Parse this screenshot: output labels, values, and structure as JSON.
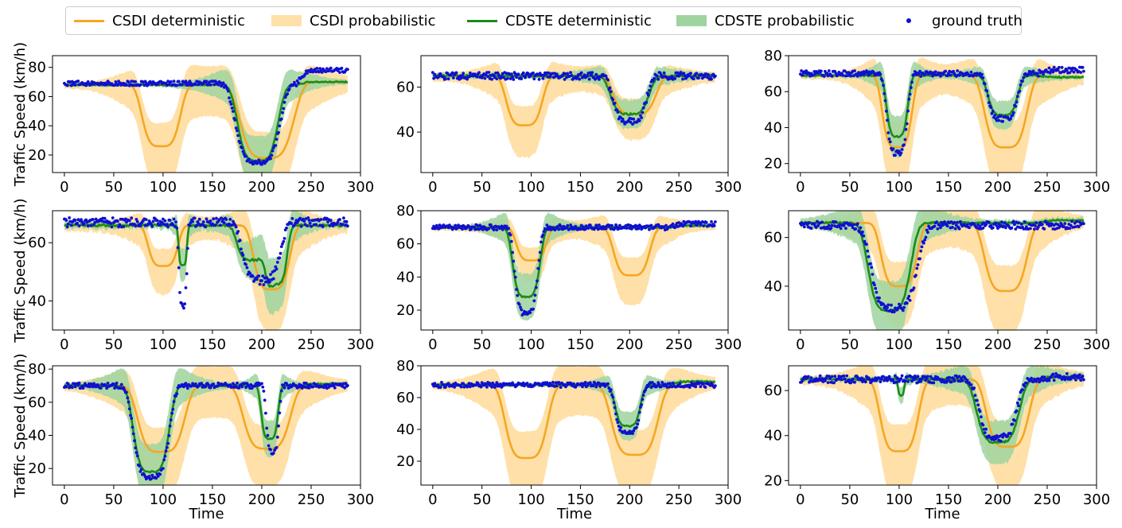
{
  "colors": {
    "csdi": "#f5a623",
    "csdi_band": "#ffe0a8",
    "cdste": "#1a8c1a",
    "cdste_band": "#9fd39f",
    "truth": "#1010d0"
  },
  "legend": [
    {
      "key": "csdi_det",
      "label": "CSDI deterministic",
      "kind": "line",
      "color": "#f5a623"
    },
    {
      "key": "csdi_prob",
      "label": "CSDI probabilistic",
      "kind": "band",
      "color": "#ffe0a8"
    },
    {
      "key": "cdste_det",
      "label": "CDSTE deterministic",
      "kind": "line",
      "color": "#1a8c1a"
    },
    {
      "key": "cdste_prob",
      "label": "CDSTE probabilistic",
      "kind": "band",
      "color": "#9fd39f"
    },
    {
      "key": "truth",
      "label": "ground truth",
      "kind": "dot",
      "color": "#1010d0"
    }
  ],
  "axes": {
    "ylabel": "Traffic Speed (km/h)",
    "xlabel": "Time",
    "xticks": [
      0,
      50,
      100,
      150,
      200,
      250,
      300
    ],
    "xlim": [
      -12,
      300
    ]
  },
  "chart_data": [
    {
      "type": "line",
      "ylim": [
        8,
        88
      ],
      "yticks": [
        20,
        40,
        60,
        80
      ],
      "base": 68,
      "truth_base": 69,
      "end": 70,
      "end_truth": 78,
      "end_start": 235,
      "csdi": [
        {
          "c": 98,
          "w": 18,
          "d": 42
        },
        {
          "c": 205,
          "w": 25,
          "d": 50
        }
      ],
      "cdste": [
        {
          "c": 196,
          "w": 19,
          "d": 52
        }
      ],
      "truth": [
        {
          "c": 196,
          "w": 21,
          "d": 54
        }
      ]
    },
    {
      "type": "line",
      "ylim": [
        22,
        74
      ],
      "yticks": [
        40,
        60
      ],
      "base": 65,
      "truth_base": 65,
      "end": 65,
      "end_truth": 65,
      "end_start": 240,
      "csdi": [
        {
          "c": 93,
          "w": 17,
          "d": 22
        },
        {
          "c": 205,
          "w": 20,
          "d": 17
        }
      ],
      "cdste": [
        {
          "c": 200,
          "w": 18,
          "d": 17
        }
      ],
      "truth": [
        {
          "c": 200,
          "w": 16,
          "d": 20
        }
      ]
    },
    {
      "type": "line",
      "ylim": [
        15,
        80
      ],
      "yticks": [
        20,
        40,
        60,
        80
      ],
      "base": 69,
      "truth_base": 70,
      "end": 68,
      "end_truth": 72,
      "end_start": 240,
      "csdi": [
        {
          "c": 98,
          "w": 14,
          "d": 40
        },
        {
          "c": 208,
          "w": 20,
          "d": 40
        }
      ],
      "cdste": [
        {
          "c": 98,
          "w": 10,
          "d": 34
        },
        {
          "c": 205,
          "w": 14,
          "d": 22
        }
      ],
      "truth": [
        {
          "c": 98,
          "w": 10,
          "d": 44
        },
        {
          "c": 205,
          "w": 14,
          "d": 25
        }
      ]
    },
    {
      "type": "line",
      "ylim": [
        30,
        71
      ],
      "yticks": [
        40,
        60
      ],
      "base": 66,
      "truth_base": 67,
      "end": 66,
      "end_truth": 67,
      "end_start": 240,
      "csdi": [
        {
          "c": 100,
          "w": 14,
          "d": 14
        },
        {
          "c": 210,
          "w": 17,
          "d": 22
        }
      ],
      "cdste": [
        {
          "c": 120,
          "w": 4,
          "d": 14
        },
        {
          "c": 190,
          "w": 14,
          "d": 12
        },
        {
          "c": 215,
          "w": 10,
          "d": 20
        }
      ],
      "truth": [
        {
          "c": 120,
          "w": 4,
          "d": 28
        },
        {
          "c": 200,
          "w": 18,
          "d": 20
        }
      ]
    },
    {
      "type": "line",
      "ylim": [
        8,
        80
      ],
      "yticks": [
        20,
        40,
        60,
        80
      ],
      "base": 70,
      "truth_base": 70,
      "end": 71,
      "end_truth": 72,
      "end_start": 240,
      "csdi": [
        {
          "c": 100,
          "w": 14,
          "d": 20
        },
        {
          "c": 202,
          "w": 17,
          "d": 29
        }
      ],
      "cdste": [
        {
          "c": 95,
          "w": 13,
          "d": 42
        }
      ],
      "truth": [
        {
          "c": 95,
          "w": 11,
          "d": 52
        }
      ]
    },
    {
      "type": "line",
      "ylim": [
        22,
        71
      ],
      "yticks": [
        40,
        60
      ],
      "base": 66,
      "truth_base": 65,
      "end": 67,
      "end_truth": 65,
      "end_start": 240,
      "csdi": [
        {
          "c": 100,
          "w": 17,
          "d": 26
        },
        {
          "c": 208,
          "w": 20,
          "d": 28
        }
      ],
      "cdste": [
        {
          "c": 90,
          "w": 20,
          "d": 36
        }
      ],
      "truth": [
        {
          "c": 95,
          "w": 22,
          "d": 34
        }
      ]
    },
    {
      "type": "line",
      "ylim": [
        10,
        82
      ],
      "yticks": [
        20,
        40,
        60,
        80
      ],
      "base": 70,
      "truth_base": 70,
      "end": 71,
      "end_truth": 70,
      "end_start": 240,
      "csdi": [
        {
          "c": 98,
          "w": 22,
          "d": 40
        },
        {
          "c": 205,
          "w": 22,
          "d": 38
        }
      ],
      "cdste": [
        {
          "c": 88,
          "w": 17,
          "d": 52
        },
        {
          "c": 208,
          "w": 8,
          "d": 32
        }
      ],
      "truth": [
        {
          "c": 88,
          "w": 17,
          "d": 55
        },
        {
          "c": 211,
          "w": 6,
          "d": 40
        }
      ]
    },
    {
      "type": "line",
      "ylim": [
        5,
        80
      ],
      "yticks": [
        20,
        40,
        60,
        80
      ],
      "base": 68,
      "truth_base": 68,
      "end": 70,
      "end_truth": 68,
      "end_start": 240,
      "csdi": [
        {
          "c": 95,
          "w": 20,
          "d": 46
        },
        {
          "c": 205,
          "w": 22,
          "d": 44
        }
      ],
      "cdste": [
        {
          "c": 198,
          "w": 12,
          "d": 26
        }
      ],
      "truth": [
        {
          "c": 198,
          "w": 12,
          "d": 30
        }
      ]
    },
    {
      "type": "line",
      "ylim": [
        18,
        71
      ],
      "yticks": [
        20,
        40,
        60
      ],
      "base": 65,
      "truth_base": 65,
      "end": 66,
      "end_truth": 66,
      "end_start": 240,
      "csdi": [
        {
          "c": 100,
          "w": 18,
          "d": 32
        },
        {
          "c": 210,
          "w": 20,
          "d": 30
        }
      ],
      "cdste": [
        {
          "c": 102,
          "w": 3,
          "d": 7
        },
        {
          "c": 200,
          "w": 20,
          "d": 28
        }
      ],
      "truth": [
        {
          "c": 200,
          "w": 18,
          "d": 26
        }
      ]
    }
  ]
}
